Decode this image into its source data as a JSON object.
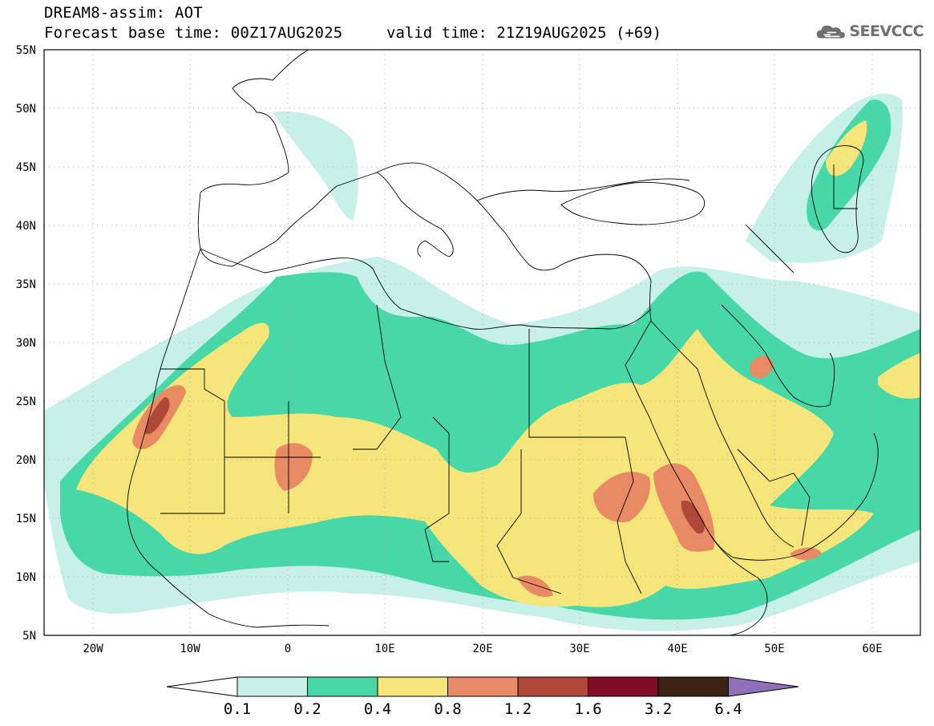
{
  "title": {
    "line1": "DREAM8-assim: AOT",
    "base_time": "Forecast base time: 00Z17AUG2025",
    "valid_time": "valid time: 21Z19AUG2025 (+69)"
  },
  "logo": {
    "text": "SEEVCCC",
    "icon": "cloud-icon",
    "color": "#6f6f6f"
  },
  "map": {
    "variable": "AOT",
    "lon_range": [
      -25,
      65
    ],
    "lat_range": [
      5,
      55
    ],
    "lat_ticks": [
      "55N",
      "50N",
      "45N",
      "40N",
      "35N",
      "30N",
      "25N",
      "20N",
      "15N",
      "10N",
      "5N"
    ],
    "lon_ticks": [
      "20W",
      "10W",
      "0",
      "10E",
      "20E",
      "30E",
      "40E",
      "50E",
      "60E"
    ]
  },
  "legend": {
    "levels": [
      "0.1",
      "0.2",
      "0.4",
      "0.8",
      "1.2",
      "1.6",
      "3.2",
      "6.4"
    ],
    "colors": [
      "#ffffff",
      "#c6f0e8",
      "#48d8a8",
      "#f5e57a",
      "#e88a64",
      "#b0483a",
      "#800c28",
      "#3c2414",
      "#9070b8"
    ]
  }
}
